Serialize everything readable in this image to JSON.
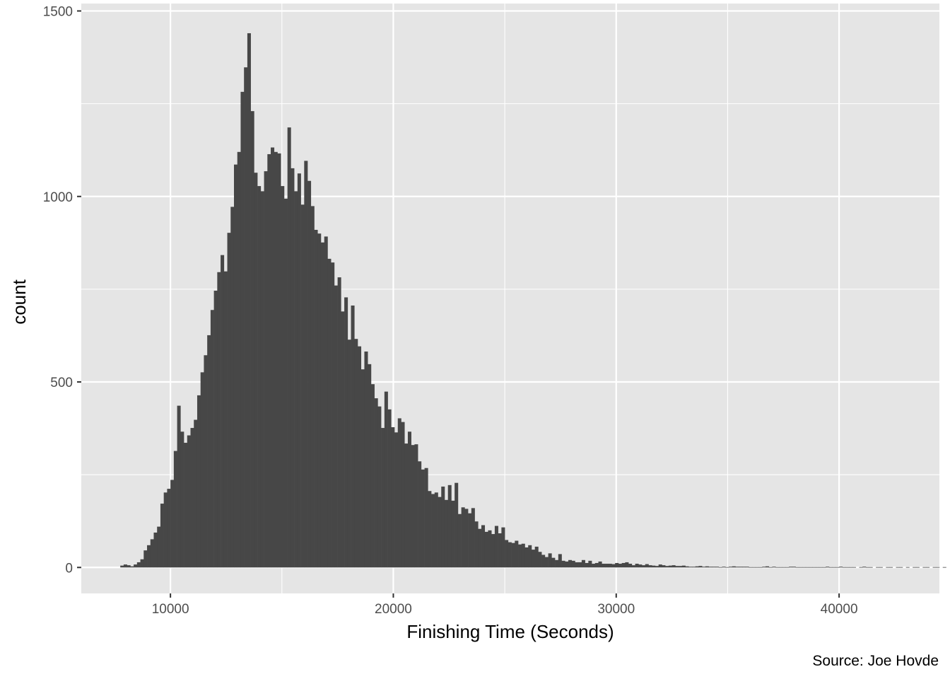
{
  "chart_data": {
    "type": "bar",
    "subtype": "histogram",
    "title": "",
    "xlabel": "Finishing Time (Seconds)",
    "ylabel": "count",
    "caption": "Source: Joe Hovde",
    "xlim": [
      6000,
      44500
    ],
    "ylim": [
      -70,
      1520
    ],
    "x_ticks": [
      10000,
      20000,
      30000,
      40000
    ],
    "y_ticks": [
      0,
      500,
      1000,
      1500
    ],
    "grid": true,
    "bin_start": 7750,
    "bin_width": 150,
    "bar_color": "#474747",
    "panel_color": "#e5e5e5",
    "grid_color": "#ffffff",
    "values": [
      5,
      8,
      6,
      3,
      8,
      14,
      22,
      46,
      60,
      76,
      94,
      110,
      172,
      202,
      212,
      236,
      314,
      436,
      366,
      336,
      356,
      376,
      398,
      464,
      526,
      572,
      626,
      694,
      746,
      796,
      842,
      798,
      902,
      972,
      1086,
      1120,
      1282,
      1348,
      1440,
      1230,
      1064,
      1028,
      1014,
      1068,
      1114,
      1132,
      1120,
      1116,
      1028,
      994,
      1186,
      1076,
      1014,
      1062,
      978,
      1096,
      1042,
      974,
      910,
      900,
      876,
      892,
      832,
      822,
      760,
      782,
      690,
      728,
      614,
      706,
      616,
      596,
      534,
      582,
      548,
      494,
      456,
      434,
      376,
      474,
      426,
      378,
      364,
      402,
      392,
      334,
      366,
      330,
      332,
      286,
      264,
      268,
      206,
      198,
      202,
      190,
      218,
      182,
      222,
      180,
      228,
      144,
      162,
      158,
      146,
      160,
      124,
      104,
      114,
      96,
      100,
      90,
      112,
      92,
      108,
      74,
      68,
      66,
      72,
      62,
      64,
      54,
      60,
      48,
      56,
      42,
      34,
      28,
      38,
      26,
      20,
      36,
      18,
      16,
      20,
      18,
      14,
      14,
      20,
      12,
      18,
      10,
      12,
      16,
      10,
      10,
      10,
      9,
      12,
      10,
      12,
      14,
      10,
      6,
      10,
      8,
      6,
      9,
      6,
      5,
      4,
      8,
      6,
      4,
      5,
      6,
      4,
      4,
      5,
      3,
      2,
      2,
      3,
      4,
      2,
      3,
      2,
      2,
      2,
      1,
      2,
      1,
      2,
      3,
      2,
      2,
      2,
      2,
      1,
      1,
      1,
      1,
      2,
      3,
      1,
      2,
      1,
      1,
      1,
      1,
      2,
      2,
      1,
      1,
      1,
      1,
      1,
      1,
      1,
      1,
      1,
      2,
      1,
      1,
      1,
      2,
      1,
      1,
      1,
      1,
      0,
      1,
      2,
      1,
      1,
      0,
      1,
      1,
      0,
      1,
      1,
      0,
      1,
      1,
      0,
      1,
      0,
      1,
      1,
      0,
      1,
      1,
      0,
      1,
      1,
      0,
      1,
      0,
      0,
      0
    ]
  }
}
